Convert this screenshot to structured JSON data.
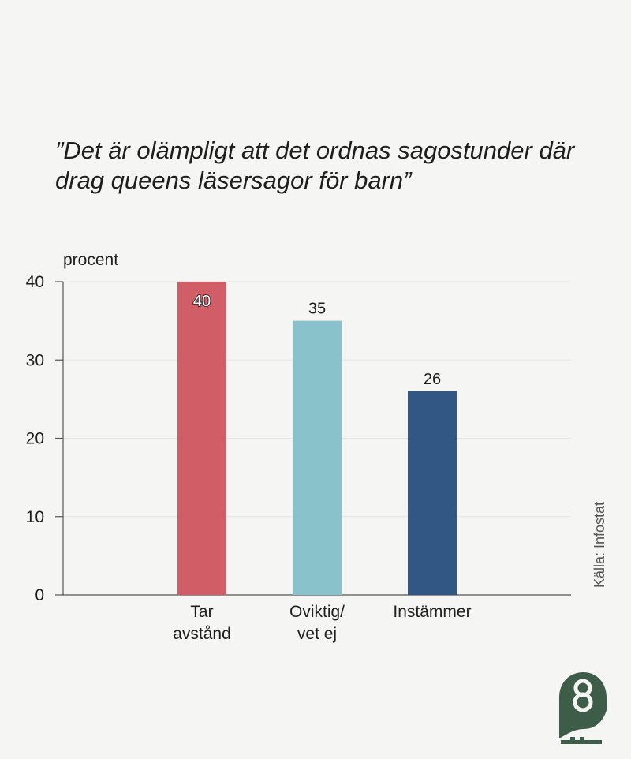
{
  "chart_data": {
    "type": "bar",
    "title": "”Det är olämpligt att det ordnas sagostunder där drag queens läsersagor för barn”",
    "ylabel": "procent",
    "xlabel": "",
    "categories": [
      [
        "Tar",
        "avstånd"
      ],
      [
        "Oviktig/",
        "vet ej"
      ],
      [
        "Instämmer"
      ]
    ],
    "values": [
      40,
      35,
      26
    ],
    "colors": [
      "#d15d66",
      "#8ac2cb",
      "#335784"
    ],
    "ylim": [
      0,
      40
    ],
    "yticks": [
      0,
      10,
      20,
      30,
      40
    ],
    "grid": true,
    "legend": "none"
  },
  "source": "Källa: Infostat",
  "logo": {
    "icon": "owl-logo-icon",
    "color": "#3d5d49"
  }
}
